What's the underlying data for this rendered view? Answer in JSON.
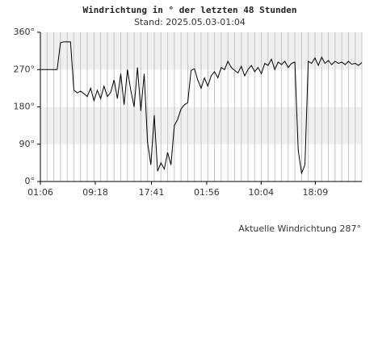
{
  "chart_data": {
    "type": "line",
    "title": "Windrichtung in ° der letzten 48 Stunden",
    "subtitle": "Stand: 2025.05.03-01:04",
    "annotation": "Aktuelle Windrichtung 287°",
    "x": [
      0,
      0.5,
      1,
      1.5,
      2,
      2.5,
      3,
      3.5,
      4,
      4.5,
      5,
      5.5,
      6,
      6.5,
      7,
      7.5,
      8,
      8.5,
      9,
      9.5,
      10,
      10.5,
      11,
      11.5,
      12,
      12.5,
      13,
      13.5,
      14,
      14.5,
      15,
      15.5,
      16,
      16.5,
      17,
      17.5,
      18,
      18.5,
      19,
      19.5,
      20,
      20.5,
      21,
      21.5,
      22,
      22.5,
      23,
      23.5,
      24,
      24.5,
      25,
      25.5,
      26,
      26.5,
      27,
      27.5,
      28,
      28.5,
      29,
      29.5,
      30,
      30.5,
      31,
      31.5,
      32,
      32.5,
      33,
      33.5,
      34,
      34.5,
      35,
      35.5,
      36,
      36.5,
      37,
      37.5,
      38,
      38.5,
      39,
      39.5,
      40,
      40.5,
      41,
      41.5,
      42,
      42.5,
      43,
      43.5,
      44,
      44.5,
      45,
      45.5,
      46,
      46.5,
      47,
      47.5,
      48
    ],
    "series": [
      {
        "color": "#000000",
        "values": [
          270,
          270,
          270,
          270,
          270,
          270,
          335,
          337,
          337,
          337,
          220,
          214,
          218,
          212,
          205,
          225,
          195,
          220,
          200,
          230,
          205,
          215,
          245,
          200,
          260,
          185,
          270,
          220,
          180,
          275,
          170,
          260,
          95,
          40,
          160,
          25,
          45,
          30,
          70,
          40,
          135,
          150,
          175,
          185,
          190,
          268,
          272,
          245,
          225,
          250,
          230,
          255,
          265,
          250,
          275,
          270,
          290,
          275,
          268,
          262,
          278,
          255,
          270,
          280,
          265,
          275,
          260,
          285,
          280,
          295,
          270,
          288,
          282,
          290,
          275,
          285,
          288,
          75,
          20,
          40,
          290,
          285,
          298,
          280,
          300,
          285,
          292,
          282,
          290,
          285,
          288,
          282,
          290,
          283,
          285,
          280,
          287
        ]
      }
    ],
    "xlim": [
      0,
      48
    ],
    "xticks": [
      {
        "value": 0,
        "label": "01:06"
      },
      {
        "value": 8.2,
        "label": "09:18"
      },
      {
        "value": 16.583,
        "label": "17:41"
      },
      {
        "value": 24.833,
        "label": "01:56"
      },
      {
        "value": 32.967,
        "label": "10:04"
      },
      {
        "value": 41.05,
        "label": "18:09"
      }
    ],
    "ylim": [
      0,
      360
    ],
    "yticks": [
      {
        "value": 0,
        "label": "0°"
      },
      {
        "value": 90,
        "label": "90°"
      },
      {
        "value": 180,
        "label": "180°"
      },
      {
        "value": 270,
        "label": "270°"
      },
      {
        "value": 360,
        "label": "360°"
      }
    ],
    "band_color": "#f0f0f0"
  }
}
